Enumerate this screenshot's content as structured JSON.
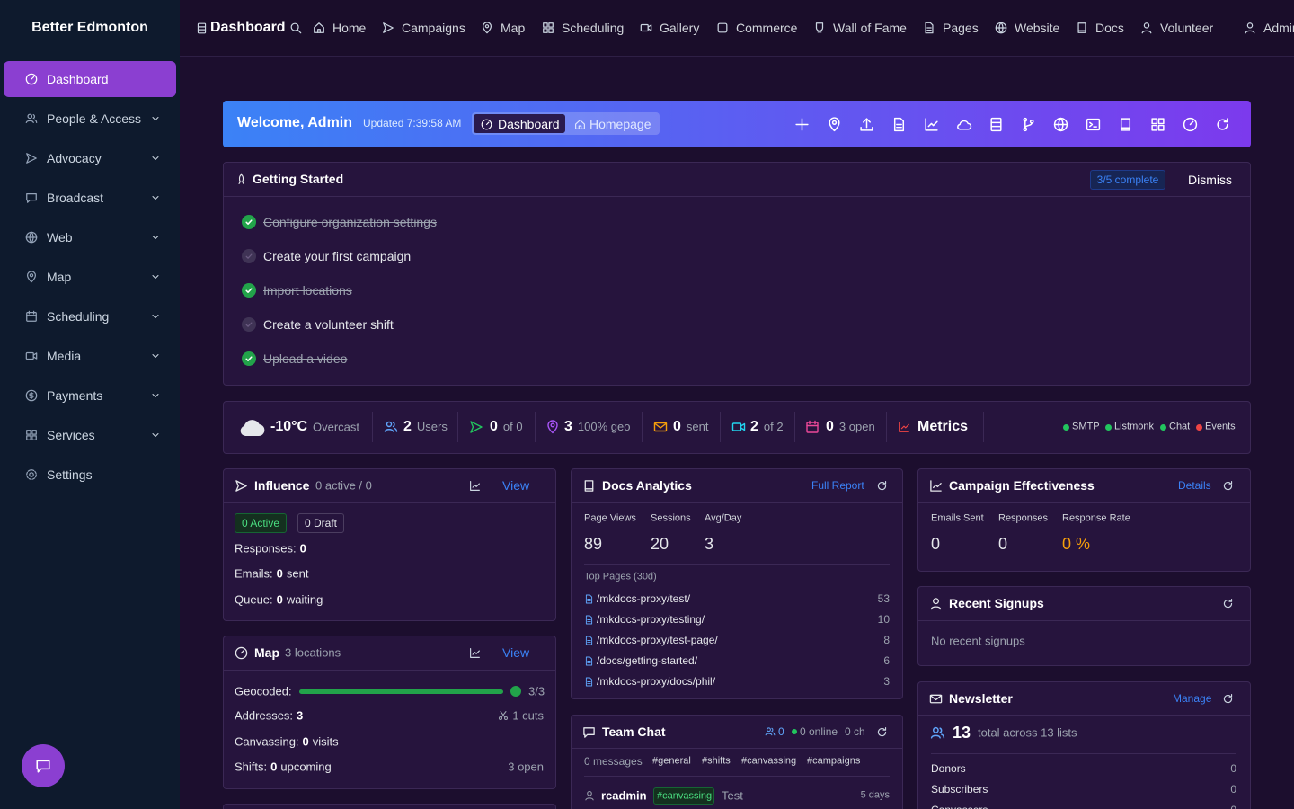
{
  "sidebar": {
    "brand": "Better Edmonton",
    "items": [
      "Dashboard",
      "People & Access",
      "Advocacy",
      "Broadcast",
      "Web",
      "Map",
      "Scheduling",
      "Media",
      "Payments",
      "Services",
      "Settings"
    ]
  },
  "topnav": {
    "title": "Dashboard",
    "links": [
      "Home",
      "Campaigns",
      "Map",
      "Scheduling",
      "Gallery",
      "Commerce",
      "Wall of Fame",
      "Pages",
      "Website",
      "Docs",
      "Volunteer",
      "Admin"
    ]
  },
  "welcome": {
    "title": "Welcome, Admin",
    "updated": "Updated 7:39:58 AM",
    "tabs": [
      "Dashboard",
      "Homepage"
    ]
  },
  "getting_started": {
    "title": "Getting Started",
    "progress": "3/5 complete",
    "dismiss": "Dismiss",
    "tasks": [
      {
        "label": "Configure organization settings",
        "done": true
      },
      {
        "label": "Create your first campaign",
        "done": false
      },
      {
        "label": "Import locations",
        "done": true
      },
      {
        "label": "Create a volunteer shift",
        "done": false
      },
      {
        "label": "Upload a video",
        "done": true
      }
    ]
  },
  "status_bar": {
    "temperature": "-10°C",
    "condition": "Overcast",
    "stats": [
      {
        "value": 2,
        "label": "Users"
      },
      {
        "value": 0,
        "label": "of 0"
      },
      {
        "value": 3,
        "label": "100% geo"
      },
      {
        "value": 0,
        "label": "sent"
      },
      {
        "value": 2,
        "label": "of 2"
      },
      {
        "value": 0,
        "label": "3 open"
      }
    ],
    "metrics": "Metrics",
    "services": [
      {
        "name": "SMTP",
        "color": "#22c55e"
      },
      {
        "name": "Listmonk",
        "color": "#22c55e"
      },
      {
        "name": "Chat",
        "color": "#22c55e"
      },
      {
        "name": "Events",
        "color": "#ef4444"
      }
    ]
  },
  "influence": {
    "title": "Influence",
    "subtitle": "0 active / 0",
    "link": "View",
    "badges": [
      "0 Active",
      "0 Draft"
    ],
    "lines": [
      {
        "label": "Responses:",
        "value": 0
      },
      {
        "label": "Emails:",
        "value": 0,
        "suffix": "sent"
      },
      {
        "label": "Queue:",
        "value": 0,
        "suffix": "waiting"
      }
    ]
  },
  "map": {
    "title": "Map",
    "subtitle": "3 locations",
    "link": "View",
    "geocoded": {
      "label": "Geocoded:",
      "value": "3/3"
    },
    "lines": [
      {
        "label": "Addresses:",
        "value": 3,
        "right": "1 cuts"
      },
      {
        "label": "Canvassing:",
        "value": 0,
        "suffix": "visits"
      },
      {
        "label": "Shifts:",
        "value": 0,
        "suffix": "upcoming",
        "right": "3 open"
      }
    ]
  },
  "docs_analytics": {
    "title": "Docs Analytics",
    "link": "Full Report",
    "stats": [
      {
        "label": "Page Views",
        "value": 89
      },
      {
        "label": "Sessions",
        "value": 20
      },
      {
        "label": "Avg/Day",
        "value": 3
      }
    ],
    "top_pages_title": "Top Pages (30d)",
    "top_pages": [
      {
        "path": "/mkdocs-proxy/test/",
        "count": 53
      },
      {
        "path": "/mkdocs-proxy/testing/",
        "count": 10
      },
      {
        "path": "/mkdocs-proxy/test-page/",
        "count": 8
      },
      {
        "path": "/docs/getting-started/",
        "count": 6
      },
      {
        "path": "/mkdocs-proxy/docs/phil/",
        "count": 3
      }
    ]
  },
  "team_chat": {
    "title": "Team Chat",
    "users": 0,
    "online": "0 online",
    "channels_count": "0 ch",
    "messages": "0 messages",
    "channels": [
      "#general",
      "#shifts",
      "#canvassing",
      "#campaigns"
    ],
    "message": {
      "user": "rcadmin",
      "channel": "#canvassing",
      "text": "Test",
      "time": "5 days"
    }
  },
  "campaign_effectiveness": {
    "title": "Campaign Effectiveness",
    "link": "Details",
    "stats": [
      {
        "label": "Emails Sent",
        "value": "0"
      },
      {
        "label": "Responses",
        "value": "0"
      },
      {
        "label": "Response Rate",
        "value": "0 %"
      }
    ]
  },
  "recent_signups": {
    "title": "Recent Signups",
    "empty": "No recent signups"
  },
  "newsletter": {
    "title": "Newsletter",
    "link": "Manage",
    "total": 13,
    "total_label": "total across 13 lists",
    "lists": [
      {
        "name": "Donors",
        "count": 0
      },
      {
        "name": "Subscribers",
        "count": 0
      },
      {
        "name": "Canvassers",
        "count": 0
      }
    ]
  }
}
